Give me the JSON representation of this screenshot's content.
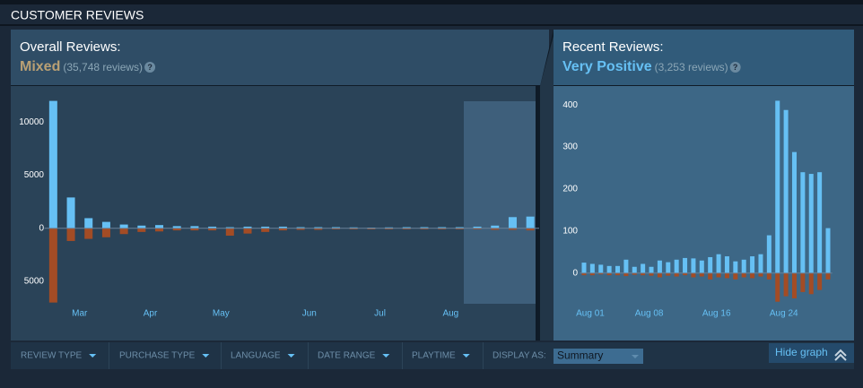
{
  "header": {
    "title": "CUSTOMER REVIEWS"
  },
  "overall": {
    "label": "Overall Reviews:",
    "rating": "Mixed",
    "count": "(35,748 reviews)",
    "help": "?"
  },
  "recent": {
    "label": "Recent Reviews:",
    "rating": "Very Positive",
    "count": "(3,253 reviews)",
    "help": "?"
  },
  "filters": {
    "items": [
      "REVIEW TYPE",
      "PURCHASE TYPE",
      "LANGUAGE",
      "DATE RANGE",
      "PLAYTIME"
    ],
    "display_as": "DISPLAY AS:",
    "display_value": "Summary",
    "hide_graph": "Hide graph"
  },
  "chart_data": [
    {
      "type": "bar",
      "categories": [
        null,
        null,
        "Mar",
        null,
        null,
        null,
        "Apr",
        null,
        null,
        null,
        "May",
        null,
        null,
        null,
        null,
        "Jun",
        null,
        null,
        null,
        "Jul",
        null,
        null,
        null,
        "Aug",
        null,
        null,
        null,
        null
      ],
      "series": [
        {
          "color": "#66c0f4",
          "values": [
            12000,
            2900,
            950,
            600,
            350,
            250,
            300,
            200,
            200,
            150,
            100,
            150,
            150,
            150,
            100,
            100,
            100,
            80,
            60,
            80,
            100,
            100,
            100,
            100,
            150,
            250,
            1050,
            1100
          ]
        },
        {
          "color": "#a34c25",
          "values": [
            -7000,
            -1200,
            -1000,
            -850,
            -550,
            -350,
            -300,
            -200,
            -200,
            -200,
            -700,
            -500,
            -350,
            -200,
            -150,
            -150,
            -100,
            -100,
            -100,
            -100,
            -100,
            -100,
            -100,
            -100,
            -100,
            -150,
            -150,
            -200
          ]
        }
      ],
      "ylim": [
        -7200,
        13400
      ],
      "yticks": [
        {
          "value": -5000,
          "label": "5000"
        },
        0,
        5000,
        10000
      ]
    },
    {
      "type": "bar",
      "categories": [
        "Aug 01",
        null,
        null,
        null,
        null,
        null,
        null,
        "Aug 08",
        null,
        null,
        null,
        null,
        null,
        null,
        null,
        "Aug 16",
        null,
        null,
        null,
        null,
        null,
        null,
        null,
        "Aug 24",
        null,
        null,
        null,
        null,
        null,
        null
      ],
      "series": [
        {
          "color": "#66c0f4",
          "values": [
            25,
            22,
            20,
            17,
            17,
            32,
            15,
            22,
            15,
            30,
            26,
            32,
            36,
            35,
            30,
            38,
            45,
            40,
            28,
            32,
            40,
            45,
            90,
            410,
            388,
            288,
            240,
            236,
            240,
            107
          ]
        },
        {
          "color": "#a34c25",
          "values": [
            -5,
            -5,
            -3,
            -5,
            -5,
            -7,
            -4,
            -5,
            -6,
            -10,
            -6,
            -8,
            -5,
            -10,
            -8,
            -15,
            -10,
            -12,
            -15,
            -10,
            -12,
            -8,
            -15,
            -68,
            -55,
            -60,
            -45,
            -50,
            -40,
            -15
          ]
        }
      ],
      "ylim": [
        -75,
        445
      ],
      "yticks": [
        0,
        100,
        200,
        300,
        400
      ]
    }
  ]
}
